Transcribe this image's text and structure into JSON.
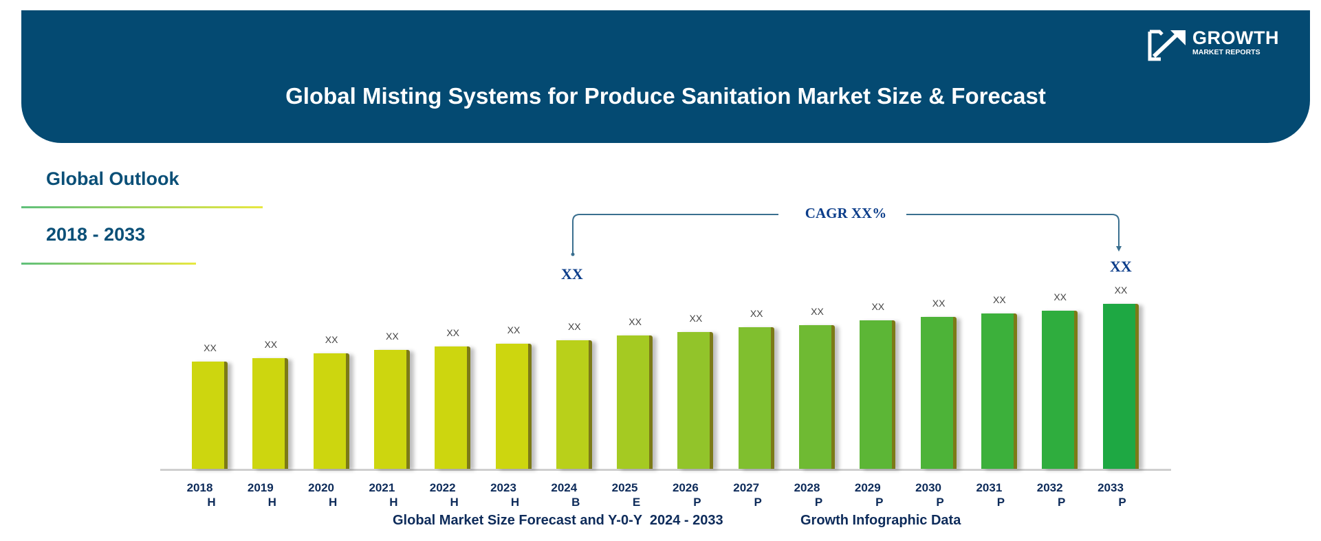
{
  "header": {
    "title": "Global Misting Systems for Produce Sanitation Market Size & Forecast",
    "logo_text_main": "GROWTH",
    "logo_text_sub": "MARKET REPORTS",
    "background_color": "#044a72"
  },
  "sidebar": {
    "outlook_label": "Global Outlook",
    "period_label": "2018 - 2033"
  },
  "cagr": {
    "label": "CAGR XX%",
    "start_value": "XX",
    "end_value": "XX"
  },
  "footer": {
    "left": "Global Market Size Forecast and Y-0-Y  2024 - 2033",
    "right": "Growth Infographic Data"
  },
  "chart_data": {
    "type": "bar",
    "categories": [
      "2018",
      "2019",
      "2020",
      "2021",
      "2022",
      "2023",
      "2024",
      "2025",
      "2026",
      "2027",
      "2028",
      "2029",
      "2030",
      "2031",
      "2032",
      "2033"
    ],
    "period_codes": [
      "H",
      "H",
      "H",
      "H",
      "H",
      "H",
      "B",
      "E",
      "P",
      "P",
      "P",
      "P",
      "P",
      "P",
      "P",
      "P"
    ],
    "values": [
      65,
      67,
      70,
      72,
      74,
      76,
      78,
      81,
      83,
      86,
      87,
      90,
      92,
      94,
      96,
      100
    ],
    "data_labels": [
      "XX",
      "XX",
      "XX",
      "XX",
      "XX",
      "XX",
      "XX",
      "XX",
      "XX",
      "XX",
      "XX",
      "XX",
      "XX",
      "XX",
      "XX",
      "XX"
    ],
    "colors": [
      "#cdd60f",
      "#cdd60f",
      "#cdd60f",
      "#cdd60f",
      "#cdd60f",
      "#cdd60f",
      "#b9d01a",
      "#a5ca22",
      "#92c42a",
      "#80bf2f",
      "#6fba33",
      "#5cb636",
      "#4db338",
      "#3cb03b",
      "#2fad3e",
      "#1ea843"
    ],
    "title": "",
    "xlabel": "",
    "ylabel": "",
    "ylim": [
      0,
      100
    ],
    "grid": false
  }
}
